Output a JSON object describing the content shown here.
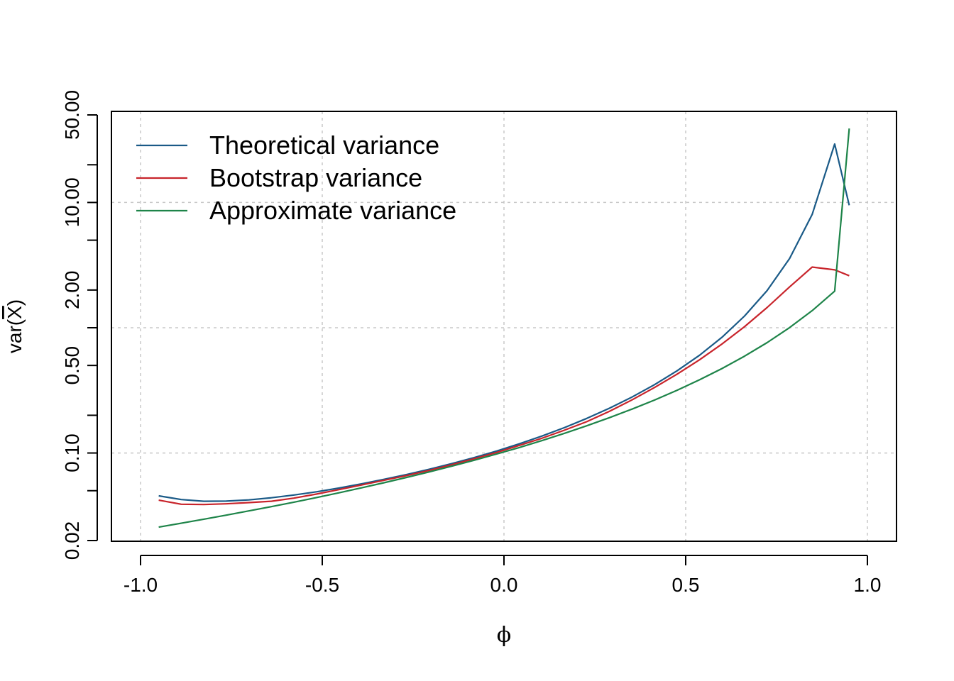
{
  "chart_data": {
    "type": "line",
    "title": "",
    "xlabel": "ϕ",
    "ylabel": {
      "prefix": "var(",
      "symbol": "X",
      "suffix": ")"
    },
    "xlim": [
      -1.0,
      1.0
    ],
    "ylim": [
      0.02,
      50
    ],
    "y_scale": "log",
    "grid": true,
    "legend_position": "top-left",
    "x_ticks": [
      {
        "value": -1.0,
        "label": "-1.0"
      },
      {
        "value": -0.5,
        "label": "-0.5"
      },
      {
        "value": 0.0,
        "label": "0.0"
      },
      {
        "value": 0.5,
        "label": "0.5"
      },
      {
        "value": 1.0,
        "label": "1.0"
      }
    ],
    "y_ticks": [
      {
        "value": 0.02,
        "label": "0.02"
      },
      {
        "value": 0.05,
        "label": ""
      },
      {
        "value": 0.1,
        "label": "0.10"
      },
      {
        "value": 0.2,
        "label": ""
      },
      {
        "value": 0.5,
        "label": "0.50"
      },
      {
        "value": 1.0,
        "label": ""
      },
      {
        "value": 2.0,
        "label": "2.00"
      },
      {
        "value": 5.0,
        "label": ""
      },
      {
        "value": 10.0,
        "label": "10.00"
      },
      {
        "value": 20.0,
        "label": ""
      },
      {
        "value": 50.0,
        "label": "50.00"
      }
    ],
    "x_grid": [
      -1.0,
      -0.5,
      0.0,
      0.5,
      1.0
    ],
    "y_grid": [
      0.1,
      1.0,
      10.0
    ],
    "x": [
      -0.95,
      -0.888,
      -0.826,
      -0.764,
      -0.702,
      -0.64,
      -0.578,
      -0.516,
      -0.454,
      -0.392,
      -0.33,
      -0.268,
      -0.206,
      -0.144,
      -0.082,
      -0.02,
      0.042,
      0.104,
      0.166,
      0.228,
      0.29,
      0.352,
      0.414,
      0.476,
      0.538,
      0.6,
      0.662,
      0.724,
      0.786,
      0.848,
      0.91,
      0.95
    ],
    "series": [
      {
        "name": "Theoretical variance",
        "color": "#1a5a87",
        "values": [
          0.0455,
          0.0425,
          0.0412,
          0.0413,
          0.0422,
          0.0439,
          0.0462,
          0.049,
          0.0525,
          0.0567,
          0.0616,
          0.0673,
          0.0741,
          0.0822,
          0.0919,
          0.1037,
          0.1183,
          0.1364,
          0.1593,
          0.1888,
          0.2275,
          0.2794,
          0.3508,
          0.4524,
          0.603,
          0.8399,
          1.24,
          1.98,
          3.57,
          8.02,
          29.3,
          9.5
        ]
      },
      {
        "name": "Bootstrap variance",
        "color": "#c8242b",
        "values": [
          0.042,
          0.039,
          0.0388,
          0.0393,
          0.0402,
          0.0412,
          0.0436,
          0.047,
          0.051,
          0.0555,
          0.0605,
          0.066,
          0.0725,
          0.0805,
          0.09,
          0.101,
          0.115,
          0.131,
          0.152,
          0.178,
          0.215,
          0.265,
          0.333,
          0.425,
          0.555,
          0.742,
          1.02,
          1.45,
          2.12,
          3.05,
          2.9,
          2.6
        ]
      },
      {
        "name": "Approximate variance",
        "color": "#1e8449",
        "values": [
          0.0256,
          0.0275,
          0.0296,
          0.0319,
          0.0345,
          0.0373,
          0.0405,
          0.0441,
          0.0481,
          0.0527,
          0.0579,
          0.0638,
          0.0706,
          0.0784,
          0.0875,
          0.0981,
          0.1106,
          0.1255,
          0.1434,
          0.165,
          0.1913,
          0.2239,
          0.2646,
          0.3165,
          0.3838,
          0.4727,
          0.5929,
          0.7607,
          1.0028,
          1.37,
          1.96,
          39.0
        ]
      }
    ]
  }
}
